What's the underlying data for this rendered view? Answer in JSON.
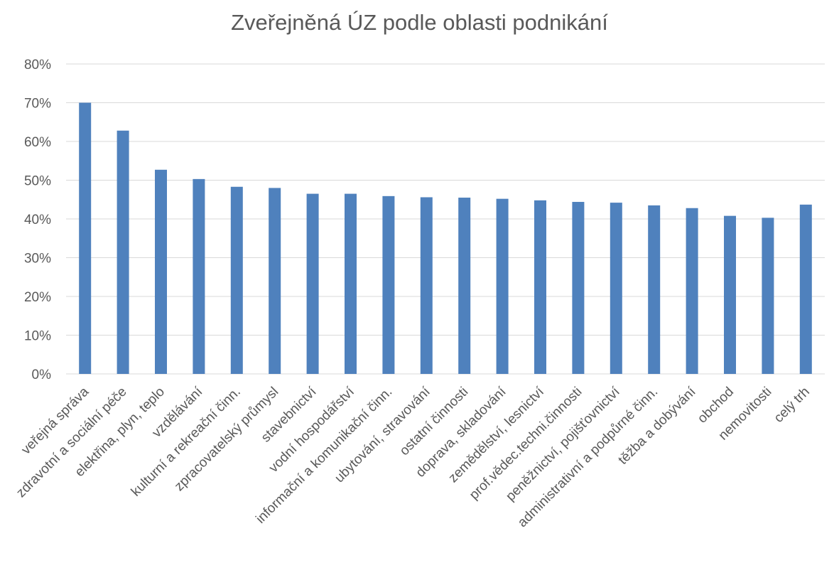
{
  "chart_data": {
    "type": "bar",
    "title": "Zveřejněná ÚZ podle oblasti podnikání",
    "xlabel": "",
    "ylabel": "",
    "ylim": [
      0,
      80
    ],
    "yticks": [
      "0%",
      "10%",
      "20%",
      "30%",
      "40%",
      "50%",
      "60%",
      "70%",
      "80%"
    ],
    "grid": true,
    "color": "#4f81bd",
    "categories": [
      "veřejná správa",
      "zdravotní a sociální péče",
      "elektřina, plyn, teplo",
      "vzdělávání",
      "kulturní a rekreační činn.",
      "zpracovatelský průmysl",
      "stavebnictví",
      "vodní hospodářství",
      "informační a komunikační činn.",
      "ubytování, stravování",
      "ostatní činnosti",
      "doprava, skladování",
      "zemědělství, lesnictví",
      "prof.vědec.techni.činnosti",
      "peněžnictví, pojišťovnictví",
      "administrativní a podpůrné činn.",
      "těžba a dobývání",
      "obchod",
      "nemovitosti",
      "celý trh"
    ],
    "values": [
      70.0,
      62.8,
      52.7,
      50.3,
      48.3,
      48.0,
      46.5,
      46.5,
      45.9,
      45.6,
      45.5,
      45.2,
      44.8,
      44.4,
      44.2,
      43.5,
      42.8,
      40.8,
      40.3,
      43.7
    ]
  }
}
